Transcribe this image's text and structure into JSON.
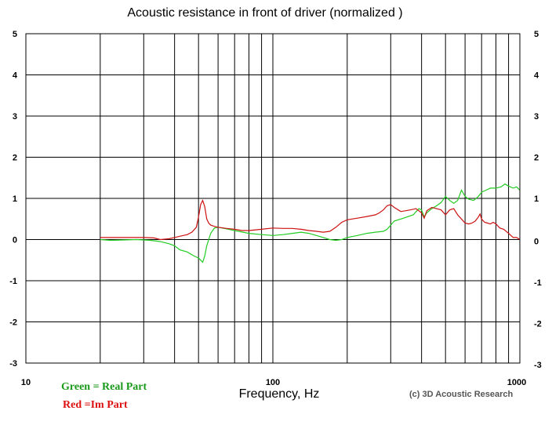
{
  "chart_data": {
    "type": "line",
    "title": "Acoustic resistance in front of driver (normalized )",
    "xlabel": "Frequency, Hz",
    "ylabel": "",
    "xscale": "log",
    "xlim": [
      10,
      1000
    ],
    "ylim": [
      -3,
      5
    ],
    "grid": true,
    "x_tick_labels": [
      "10",
      "100",
      "1000"
    ],
    "y_ticks": [
      5,
      4,
      3,
      2,
      1,
      0,
      -1,
      -2,
      -3
    ],
    "y_tick_labels": [
      "5",
      "4",
      "3",
      "2",
      "1",
      "0",
      "-1",
      "-2",
      "-3"
    ],
    "legend_text": [
      "Green = Real Part",
      "Red =Im Part"
    ],
    "credit": "(c) 3D Acoustic Research",
    "series": [
      {
        "name": "Real Part",
        "color": "#22cc22",
        "points": [
          [
            20,
            0.0
          ],
          [
            22,
            -0.02
          ],
          [
            25,
            -0.01
          ],
          [
            28,
            0.0
          ],
          [
            30,
            -0.01
          ],
          [
            32,
            -0.02
          ],
          [
            35,
            -0.05
          ],
          [
            38,
            -0.1
          ],
          [
            40,
            -0.15
          ],
          [
            42,
            -0.25
          ],
          [
            45,
            -0.3
          ],
          [
            48,
            -0.4
          ],
          [
            50,
            -0.45
          ],
          [
            52,
            -0.55
          ],
          [
            53,
            -0.4
          ],
          [
            54,
            -0.15
          ],
          [
            55,
            0.0
          ],
          [
            56,
            0.15
          ],
          [
            58,
            0.28
          ],
          [
            60,
            0.3
          ],
          [
            65,
            0.26
          ],
          [
            70,
            0.22
          ],
          [
            80,
            0.15
          ],
          [
            90,
            0.12
          ],
          [
            100,
            0.1
          ],
          [
            110,
            0.12
          ],
          [
            120,
            0.15
          ],
          [
            130,
            0.18
          ],
          [
            140,
            0.15
          ],
          [
            150,
            0.1
          ],
          [
            160,
            0.05
          ],
          [
            170,
            0.0
          ],
          [
            180,
            -0.02
          ],
          [
            190,
            0.0
          ],
          [
            200,
            0.05
          ],
          [
            220,
            0.1
          ],
          [
            240,
            0.15
          ],
          [
            260,
            0.18
          ],
          [
            280,
            0.2
          ],
          [
            290,
            0.25
          ],
          [
            300,
            0.35
          ],
          [
            310,
            0.45
          ],
          [
            330,
            0.5
          ],
          [
            350,
            0.55
          ],
          [
            370,
            0.6
          ],
          [
            390,
            0.75
          ],
          [
            400,
            0.72
          ],
          [
            410,
            0.55
          ],
          [
            420,
            0.65
          ],
          [
            440,
            0.75
          ],
          [
            460,
            0.82
          ],
          [
            480,
            0.9
          ],
          [
            500,
            1.05
          ],
          [
            520,
            0.95
          ],
          [
            540,
            0.88
          ],
          [
            560,
            0.95
          ],
          [
            580,
            1.2
          ],
          [
            600,
            1.05
          ],
          [
            620,
            0.98
          ],
          [
            650,
            0.95
          ],
          [
            680,
            1.05
          ],
          [
            700,
            1.15
          ],
          [
            730,
            1.2
          ],
          [
            760,
            1.25
          ],
          [
            800,
            1.25
          ],
          [
            840,
            1.28
          ],
          [
            870,
            1.35
          ],
          [
            900,
            1.3
          ],
          [
            940,
            1.25
          ],
          [
            970,
            1.28
          ],
          [
            1000,
            1.2
          ]
        ]
      },
      {
        "name": "Im Part",
        "color": "#cc1111",
        "points": [
          [
            20,
            0.05
          ],
          [
            25,
            0.05
          ],
          [
            30,
            0.05
          ],
          [
            33,
            0.04
          ],
          [
            35,
            0.0
          ],
          [
            38,
            0.02
          ],
          [
            40,
            0.05
          ],
          [
            42,
            0.08
          ],
          [
            45,
            0.12
          ],
          [
            47,
            0.18
          ],
          [
            49,
            0.3
          ],
          [
            50,
            0.55
          ],
          [
            51,
            0.85
          ],
          [
            52,
            0.95
          ],
          [
            53,
            0.8
          ],
          [
            54,
            0.5
          ],
          [
            55,
            0.4
          ],
          [
            56,
            0.35
          ],
          [
            58,
            0.32
          ],
          [
            60,
            0.3
          ],
          [
            65,
            0.27
          ],
          [
            70,
            0.25
          ],
          [
            75,
            0.22
          ],
          [
            80,
            0.22
          ],
          [
            90,
            0.25
          ],
          [
            100,
            0.28
          ],
          [
            110,
            0.27
          ],
          [
            120,
            0.27
          ],
          [
            130,
            0.25
          ],
          [
            140,
            0.22
          ],
          [
            150,
            0.2
          ],
          [
            160,
            0.18
          ],
          [
            170,
            0.2
          ],
          [
            175,
            0.25
          ],
          [
            180,
            0.3
          ],
          [
            190,
            0.42
          ],
          [
            200,
            0.48
          ],
          [
            220,
            0.52
          ],
          [
            240,
            0.56
          ],
          [
            260,
            0.6
          ],
          [
            270,
            0.65
          ],
          [
            280,
            0.72
          ],
          [
            290,
            0.82
          ],
          [
            300,
            0.85
          ],
          [
            310,
            0.78
          ],
          [
            330,
            0.68
          ],
          [
            360,
            0.72
          ],
          [
            380,
            0.75
          ],
          [
            400,
            0.65
          ],
          [
            410,
            0.52
          ],
          [
            420,
            0.7
          ],
          [
            440,
            0.78
          ],
          [
            460,
            0.75
          ],
          [
            480,
            0.72
          ],
          [
            500,
            0.6
          ],
          [
            520,
            0.72
          ],
          [
            540,
            0.75
          ],
          [
            560,
            0.6
          ],
          [
            580,
            0.5
          ],
          [
            600,
            0.4
          ],
          [
            620,
            0.38
          ],
          [
            640,
            0.4
          ],
          [
            660,
            0.45
          ],
          [
            680,
            0.55
          ],
          [
            690,
            0.62
          ],
          [
            700,
            0.5
          ],
          [
            720,
            0.42
          ],
          [
            740,
            0.4
          ],
          [
            760,
            0.38
          ],
          [
            780,
            0.42
          ],
          [
            800,
            0.38
          ],
          [
            830,
            0.28
          ],
          [
            860,
            0.25
          ],
          [
            900,
            0.15
          ],
          [
            940,
            0.05
          ],
          [
            970,
            0.05
          ],
          [
            1000,
            0.0
          ]
        ]
      }
    ]
  }
}
